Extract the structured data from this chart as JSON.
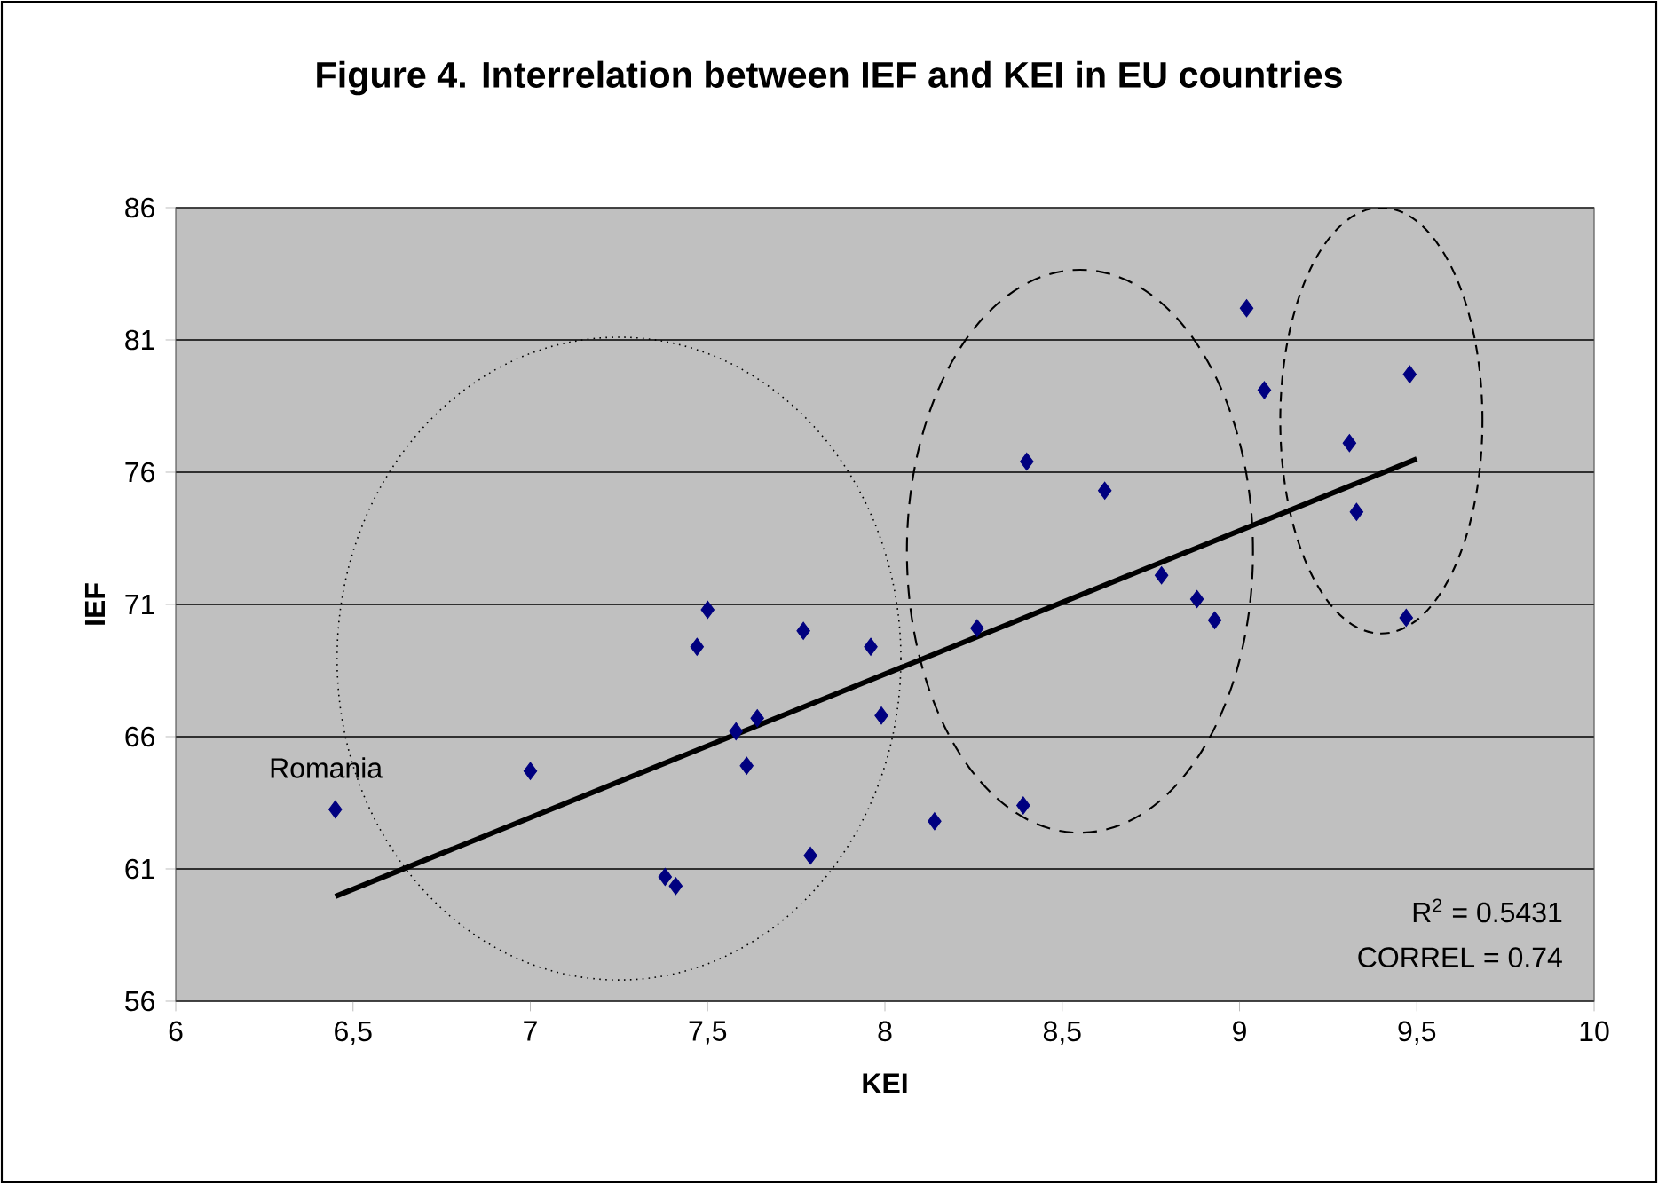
{
  "chart_data": {
    "type": "scatter",
    "title": "Figure 4. Interrelation between IEF and KEI in EU countries",
    "xlabel": "KEI",
    "ylabel": "IEF",
    "xlim": [
      6,
      10
    ],
    "ylim": [
      56,
      86
    ],
    "xticks": [
      6,
      {
        "value": 6.5,
        "label": "6,5"
      },
      7,
      {
        "value": 7.5,
        "label": "7,5"
      },
      8,
      {
        "value": 8.5,
        "label": "8,5"
      },
      9,
      {
        "value": 9.5,
        "label": "9,5"
      },
      10
    ],
    "yticks": [
      56,
      61,
      66,
      71,
      76,
      81,
      86
    ],
    "grid": "y",
    "series": [
      {
        "marker": "diamond",
        "color": "#000080",
        "x": [
          6.45,
          7.0,
          7.38,
          7.41,
          7.47,
          7.5,
          7.58,
          7.61,
          7.64,
          7.77,
          7.79,
          7.96,
          7.99,
          8.14,
          8.26,
          8.39,
          8.4,
          8.62,
          8.78,
          8.88,
          8.93,
          9.02,
          9.07,
          9.31,
          9.33,
          9.47,
          9.48
        ],
        "values": [
          63.25,
          64.7,
          60.7,
          60.35,
          69.4,
          70.8,
          66.2,
          64.9,
          66.7,
          70.0,
          61.5,
          69.4,
          66.8,
          62.8,
          70.1,
          63.4,
          76.4,
          75.3,
          72.1,
          71.2,
          70.4,
          82.2,
          79.1,
          77.1,
          74.5,
          70.5,
          79.7
        ]
      },
      {
        "type": "line",
        "marker": "none",
        "color": "#000000",
        "x": [
          6.45,
          9.5
        ],
        "values": [
          59.96,
          76.5
        ]
      }
    ],
    "annotations": [
      {
        "text": "Romania",
        "x": 6.45,
        "y": 63.25
      },
      "R$^{2}$ = 0.5431",
      "CORREL = 0.74"
    ]
  }
}
